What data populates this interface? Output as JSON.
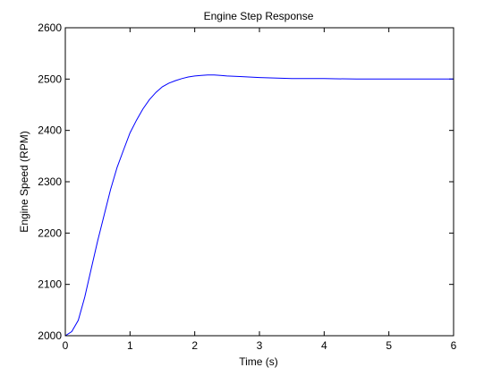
{
  "chart_data": {
    "type": "line",
    "title": "Engine Step Response",
    "xlabel": "Time (s)",
    "ylabel": "Engine Speed (RPM)",
    "xlim": [
      0,
      6
    ],
    "ylim": [
      2000,
      2600
    ],
    "xticks": [
      0,
      1,
      2,
      3,
      4,
      5,
      6
    ],
    "yticks": [
      2000,
      2100,
      2200,
      2300,
      2400,
      2500,
      2600
    ],
    "grid": false,
    "series": [
      {
        "color": "#0000ff",
        "x": [
          0,
          0.1,
          0.2,
          0.3,
          0.4,
          0.5,
          0.6,
          0.7,
          0.8,
          0.9,
          1.0,
          1.1,
          1.2,
          1.3,
          1.4,
          1.5,
          1.6,
          1.7,
          1.8,
          1.9,
          2.0,
          2.1,
          2.2,
          2.3,
          2.4,
          2.5,
          2.7,
          3.0,
          3.5,
          4.0,
          4.5,
          5.0,
          5.5,
          6.0
        ],
        "y": [
          2000,
          2008,
          2030,
          2075,
          2130,
          2185,
          2235,
          2285,
          2328,
          2362,
          2395,
          2420,
          2442,
          2460,
          2474,
          2485,
          2492,
          2497,
          2501,
          2504,
          2506,
          2507,
          2508,
          2508,
          2507,
          2506,
          2505,
          2503,
          2501,
          2501,
          2500,
          2500,
          2500,
          2500
        ]
      }
    ]
  }
}
